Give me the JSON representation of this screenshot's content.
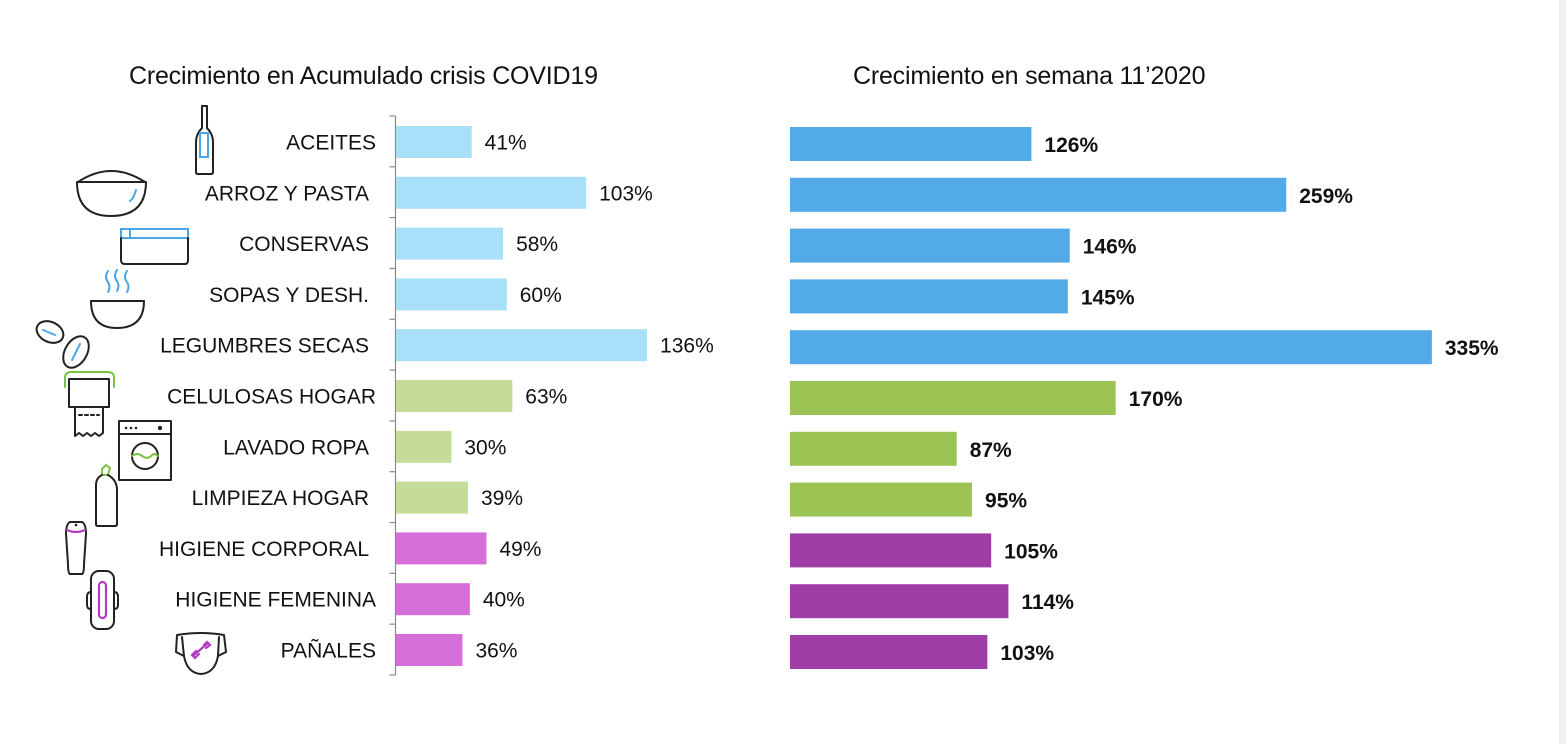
{
  "chart_data": [
    {
      "type": "bar",
      "orientation": "horizontal",
      "title": "Crecimiento en Acumulado crisis COVID19",
      "xlabel": "",
      "ylabel": "",
      "xlim": [
        0,
        140
      ],
      "grid": false,
      "categories": [
        "ACEITES",
        "ARROZ Y PASTA",
        "CONSERVAS",
        "SOPAS Y DESH.",
        "LEGUMBRES SECAS",
        "CELULOSAS HOGAR",
        "LAVADO ROPA",
        "LIMPIEZA HOGAR",
        "HIGIENE CORPORAL",
        "HIGIENE FEMENINA",
        "PAÑALES"
      ],
      "values": [
        41,
        103,
        58,
        60,
        136,
        63,
        30,
        39,
        49,
        40,
        36
      ],
      "data_labels": [
        "41%",
        "103%",
        "58%",
        "60%",
        "136%",
        "63%",
        "30%",
        "39%",
        "49%",
        "40%",
        "36%"
      ],
      "colors": [
        "#a8dff9",
        "#a8dff9",
        "#a8dff9",
        "#a8dff9",
        "#a8dff9",
        "#c5dc99",
        "#c5dc99",
        "#c5dc99",
        "#d66ed9",
        "#d66ed9",
        "#d66ed9"
      ],
      "icons": [
        "bottle-icon",
        "rice-bowl-icon",
        "tin-can-icon",
        "soup-bowl-icon",
        "beans-icon",
        "paper-towel-icon",
        "washing-machine-icon",
        "cleaning-bottle-icon",
        "shampoo-bottle-icon",
        "sanitary-pad-icon",
        "diaper-icon"
      ]
    },
    {
      "type": "bar",
      "orientation": "horizontal",
      "title": "Crecimiento en semana 11’2020",
      "xlabel": "",
      "ylabel": "",
      "xlim": [
        0,
        350
      ],
      "grid": false,
      "categories": [
        "ACEITES",
        "ARROZ Y PASTA",
        "CONSERVAS",
        "SOPAS Y DESH.",
        "LEGUMBRES SECAS",
        "CELULOSAS HOGAR",
        "LAVADO ROPA",
        "LIMPIEZA HOGAR",
        "HIGIENE CORPORAL",
        "HIGIENE FEMENINA",
        "PAÑALES"
      ],
      "values": [
        126,
        259,
        146,
        145,
        335,
        170,
        87,
        95,
        105,
        114,
        103
      ],
      "data_labels": [
        "126%",
        "259%",
        "146%",
        "145%",
        "335%",
        "170%",
        "87%",
        "95%",
        "105%",
        "114%",
        "103%"
      ],
      "colors": [
        "#52aae8",
        "#52aae8",
        "#52aae8",
        "#52aae8",
        "#52aae8",
        "#9cc455",
        "#9cc455",
        "#9cc455",
        "#a03ca6",
        "#a03ca6",
        "#a03ca6"
      ]
    }
  ]
}
